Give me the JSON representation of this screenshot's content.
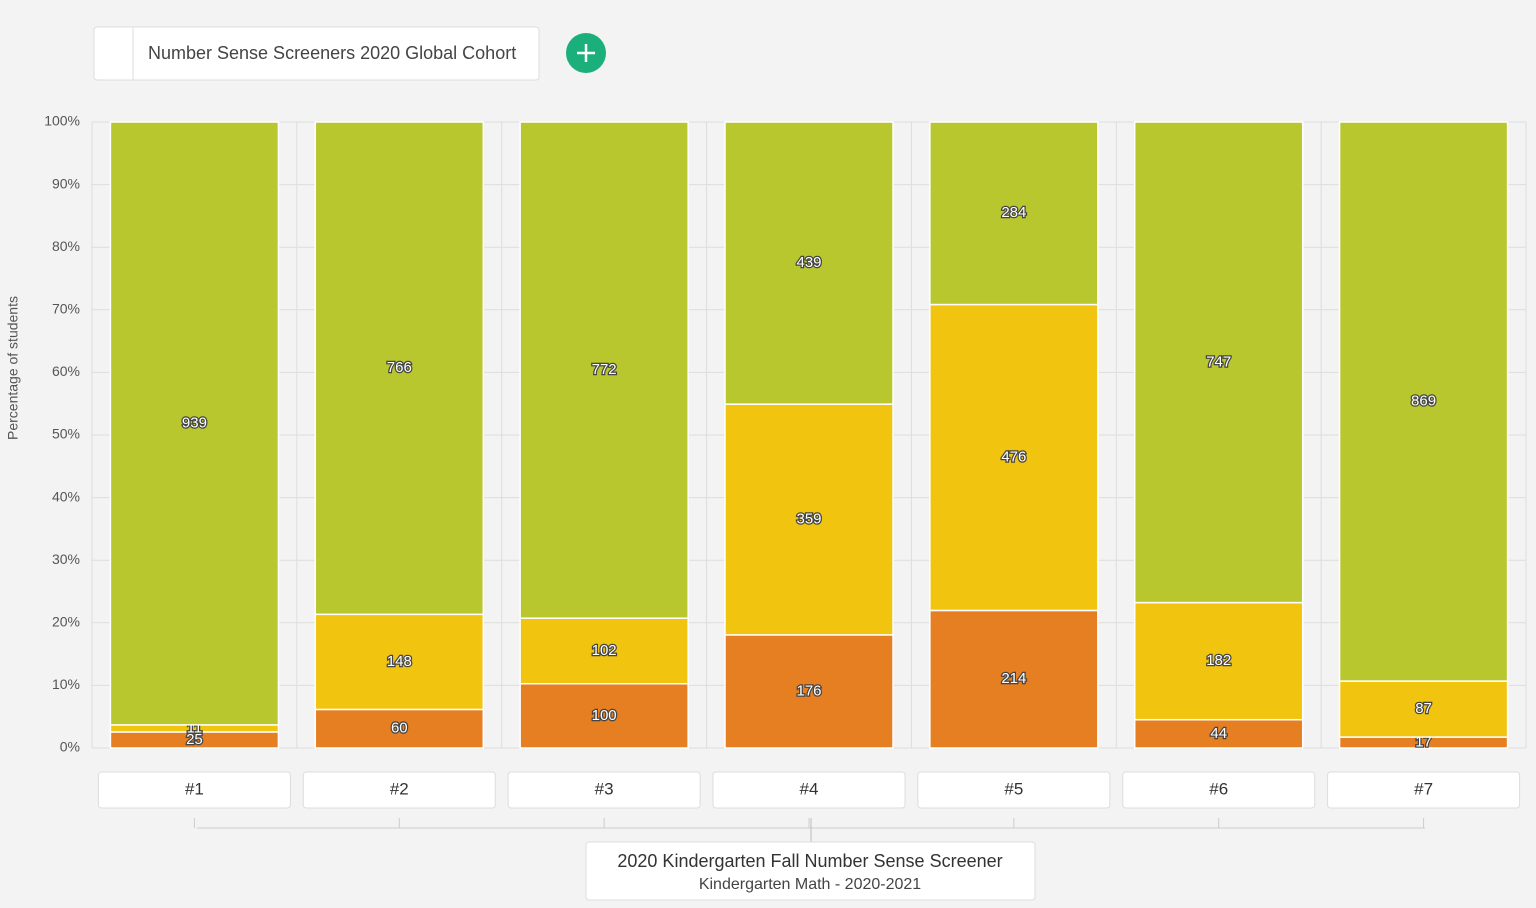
{
  "header": {
    "cohort": "Number Sense Screeners 2020 Global Cohort"
  },
  "chart_data": {
    "type": "bar",
    "stack": "percent",
    "y_label": "Percentage of students",
    "categories": [
      "#1",
      "#2",
      "#3",
      "#4",
      "#5",
      "#6",
      "#7"
    ],
    "series": [
      {
        "color": "#e67e22",
        "values": [
          25,
          60,
          100,
          176,
          214,
          44,
          17
        ]
      },
      {
        "color": "#f1c40f",
        "values": [
          11,
          148,
          102,
          359,
          476,
          182,
          87
        ]
      },
      {
        "color": "#b8c72e",
        "values": [
          939,
          766,
          772,
          439,
          284,
          747,
          869
        ]
      }
    ],
    "ylim": [
      0,
      100
    ],
    "yticks": [
      {
        "value": 0,
        "label": "0%"
      },
      {
        "value": 10,
        "label": "10%"
      },
      {
        "value": 20,
        "label": "20%"
      },
      {
        "value": 30,
        "label": "30%"
      },
      {
        "value": 40,
        "label": "40%"
      },
      {
        "value": 50,
        "label": "50%"
      },
      {
        "value": 60,
        "label": "60%"
      },
      {
        "value": 70,
        "label": "70%"
      },
      {
        "value": 80,
        "label": "80%"
      },
      {
        "value": 90,
        "label": "90%"
      },
      {
        "value": 100,
        "label": "100%"
      }
    ],
    "grid": true,
    "group": {
      "title": "2020 Kindergarten Fall Number Sense Screener",
      "subtitle": "Kindergarten Math - 2020-2021"
    }
  }
}
